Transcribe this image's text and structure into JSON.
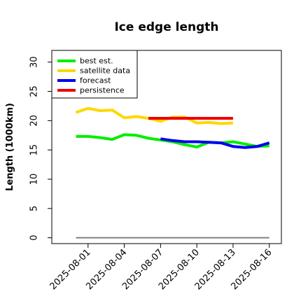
{
  "chart_data": {
    "type": "line",
    "title": "Ice edge length",
    "ylabel": "Length (1000km)",
    "xlabel": "",
    "ylim": [
      -1,
      32
    ],
    "xlim": [
      "2025-07-29",
      "2025-08-17"
    ],
    "yticks": [
      "0",
      "5",
      "10",
      "15",
      "20",
      "25",
      "30"
    ],
    "xticks": [
      "2025-08-01",
      "2025-08-04",
      "2025-08-07",
      "2025-08-10",
      "2025-08-13",
      "2025-08-16"
    ],
    "highlighted_xtick": "2025-08-07",
    "highlight_color": "#228B22",
    "grid": false,
    "legend_position": "top-left",
    "series": [
      {
        "name": "best est.",
        "color": "#00ee00",
        "x": [
          "2025-07-31",
          "2025-08-01",
          "2025-08-02",
          "2025-08-03",
          "2025-08-04",
          "2025-08-05",
          "2025-08-06",
          "2025-08-07",
          "2025-08-08",
          "2025-08-09",
          "2025-08-10",
          "2025-08-11",
          "2025-08-12",
          "2025-08-13",
          "2025-08-14",
          "2025-08-15",
          "2025-08-16"
        ],
        "y": [
          17.3,
          17.3,
          17.1,
          16.8,
          17.6,
          17.5,
          17.0,
          16.7,
          16.4,
          15.9,
          15.5,
          16.3,
          16.2,
          16.4,
          16.0,
          15.6,
          15.7
        ]
      },
      {
        "name": "satellite data",
        "color": "#ffd700",
        "x": [
          "2025-07-31",
          "2025-08-01",
          "2025-08-02",
          "2025-08-03",
          "2025-08-04",
          "2025-08-05",
          "2025-08-06",
          "2025-08-07",
          "2025-08-08",
          "2025-08-09",
          "2025-08-10",
          "2025-08-11",
          "2025-08-12",
          "2025-08-13"
        ],
        "y": [
          21.4,
          22.1,
          21.7,
          21.8,
          20.5,
          20.7,
          20.4,
          19.9,
          20.6,
          20.6,
          19.6,
          19.7,
          19.5,
          19.6
        ]
      },
      {
        "name": "forecast",
        "color": "#0000ee",
        "x": [
          "2025-08-07",
          "2025-08-08",
          "2025-08-09",
          "2025-08-10",
          "2025-08-11",
          "2025-08-12",
          "2025-08-13",
          "2025-08-14",
          "2025-08-15",
          "2025-08-16"
        ],
        "y": [
          16.9,
          16.6,
          16.4,
          16.4,
          16.3,
          16.2,
          15.6,
          15.4,
          15.6,
          16.2
        ]
      },
      {
        "name": "persistence",
        "color": "#ee0000",
        "x": [
          "2025-08-06",
          "2025-08-07",
          "2025-08-08",
          "2025-08-09",
          "2025-08-10",
          "2025-08-11",
          "2025-08-12",
          "2025-08-13"
        ],
        "y": [
          20.4,
          20.4,
          20.4,
          20.4,
          20.4,
          20.4,
          20.4,
          20.4
        ]
      }
    ],
    "reference_line": {
      "color": "#808080",
      "x": [
        "2025-07-31",
        "2025-08-16"
      ],
      "y": [
        0,
        0
      ]
    }
  }
}
